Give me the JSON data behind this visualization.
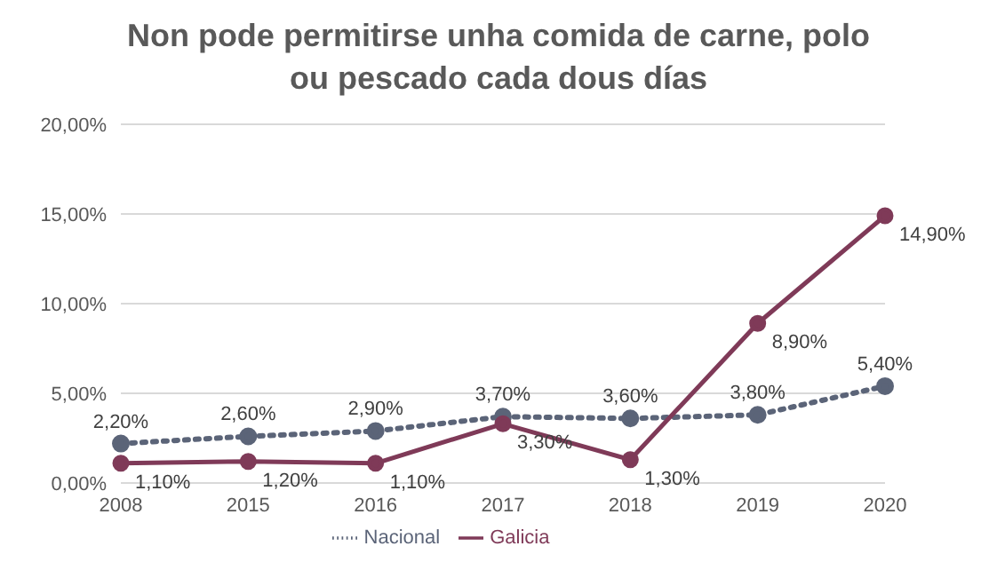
{
  "chart_data": {
    "type": "line",
    "title": "Non pode permitirse unha comida de carne, polo ou pescado cada dous días",
    "categories": [
      "2008",
      "2015",
      "2016",
      "2017",
      "2018",
      "2019",
      "2020"
    ],
    "series": [
      {
        "name": "Nacional",
        "color": "#5b6478",
        "values": [
          2.2,
          2.6,
          2.9,
          3.7,
          3.6,
          3.8,
          5.4
        ],
        "line_style": "dotted",
        "value_labels": [
          "2,20%",
          "2,60%",
          "2,90%",
          "3,70%",
          "3,60%",
          "3,80%",
          "5,40%"
        ]
      },
      {
        "name": "Galicia",
        "color": "#7f3a58",
        "values": [
          1.1,
          1.2,
          1.1,
          3.3,
          1.3,
          8.9,
          14.9
        ],
        "line_style": "solid",
        "value_labels": [
          "1,10%",
          "1,20%",
          "1,10%",
          "3,30%",
          "1,30%",
          "8,90%",
          "14,90%"
        ]
      }
    ],
    "ylim": [
      0,
      20
    ],
    "yticks": [
      {
        "value": 0,
        "label": "0,00%"
      },
      {
        "value": 5,
        "label": "5,00%"
      },
      {
        "value": 10,
        "label": "10,00%"
      },
      {
        "value": 15,
        "label": "15,00%"
      },
      {
        "value": 20,
        "label": "20,00%"
      }
    ],
    "grid": "y",
    "legend": "bottom",
    "marker": "circle"
  }
}
